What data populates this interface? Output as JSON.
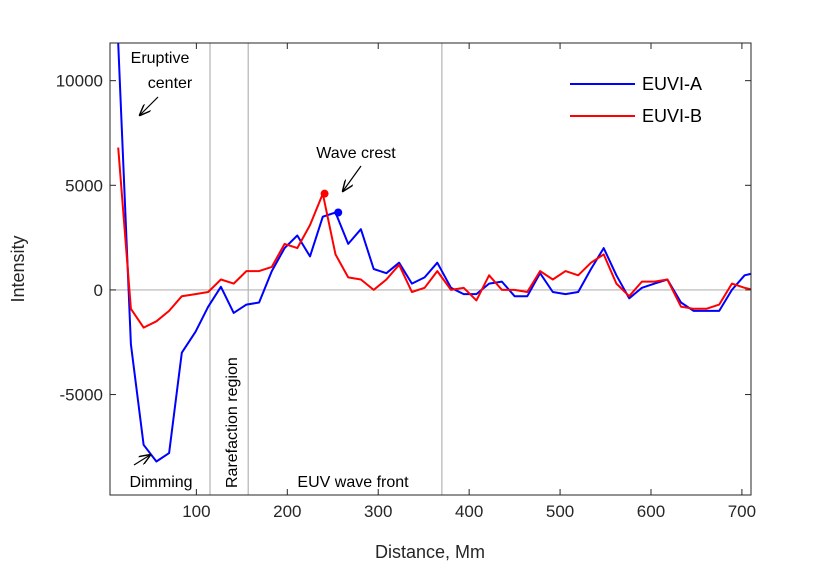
{
  "chart_data": {
    "type": "line",
    "xlabel": "Distance, Mm",
    "ylabel": "Intensity",
    "xlim": [
      5,
      710
    ],
    "ylim": [
      -9800,
      11800
    ],
    "xticks": [
      100,
      200,
      300,
      400,
      500,
      600,
      700
    ],
    "yticks": [
      -5000,
      0,
      5000,
      10000
    ],
    "grid": false,
    "legend_position": "top-right",
    "zero_line": 0,
    "vertical_markers": [
      115,
      157,
      370
    ],
    "series": [
      {
        "name": "EUVI-A",
        "color": "#0000ff",
        "x": [
          14,
          28,
          42,
          56,
          70,
          84,
          99,
          113,
          127,
          141,
          155,
          169,
          183,
          197,
          211,
          225,
          239,
          253,
          267,
          281,
          295,
          309,
          323,
          337,
          351,
          365,
          380,
          394,
          408,
          422,
          436,
          450,
          464,
          478,
          492,
          506,
          520,
          534,
          548,
          562,
          576,
          590,
          604,
          618,
          633,
          647,
          661,
          675,
          689,
          703,
          713
        ],
        "y": [
          11800,
          -2600,
          -7400,
          -8200,
          -7800,
          -3000,
          -2000,
          -800,
          150,
          -1100,
          -700,
          -600,
          900,
          2000,
          2600,
          1600,
          3500,
          3700,
          2200,
          2900,
          1000,
          800,
          1300,
          300,
          600,
          1300,
          100,
          -200,
          -200,
          300,
          400,
          -300,
          -300,
          800,
          -100,
          -200,
          -100,
          1000,
          2000,
          700,
          -400,
          100,
          300,
          500,
          -600,
          -1000,
          -1000,
          -1000,
          0,
          700,
          800
        ],
        "marker": {
          "x": 256,
          "y": 3700
        }
      },
      {
        "name": "EUVI-B",
        "color": "#ff0000",
        "x": [
          14,
          28,
          42,
          56,
          70,
          84,
          99,
          113,
          127,
          141,
          155,
          169,
          183,
          197,
          211,
          225,
          239,
          253,
          267,
          281,
          295,
          309,
          323,
          337,
          351,
          365,
          380,
          394,
          408,
          422,
          436,
          450,
          464,
          478,
          492,
          506,
          520,
          534,
          548,
          562,
          576,
          590,
          604,
          618,
          633,
          647,
          661,
          675,
          689,
          703,
          713
        ],
        "y": [
          6800,
          -900,
          -1800,
          -1500,
          -1000,
          -300,
          -200,
          -100,
          500,
          300,
          900,
          900,
          1100,
          2200,
          2000,
          3100,
          4600,
          1700,
          600,
          500,
          0,
          500,
          1200,
          -100,
          100,
          900,
          0,
          100,
          -500,
          700,
          0,
          0,
          -100,
          900,
          500,
          900,
          700,
          1300,
          1700,
          300,
          -300,
          400,
          400,
          500,
          -800,
          -900,
          -900,
          -700,
          300,
          100,
          0
        ],
        "marker": {
          "x": 241,
          "y": 4600
        }
      }
    ],
    "annotations": {
      "eruptive_center_line1": "Eruptive",
      "eruptive_center_line2": "center",
      "wave_crest": "Wave crest",
      "dimming": "Dimming",
      "rarefaction_region": "Rarefaction region",
      "euv_wave_front": "EUV wave front"
    }
  }
}
